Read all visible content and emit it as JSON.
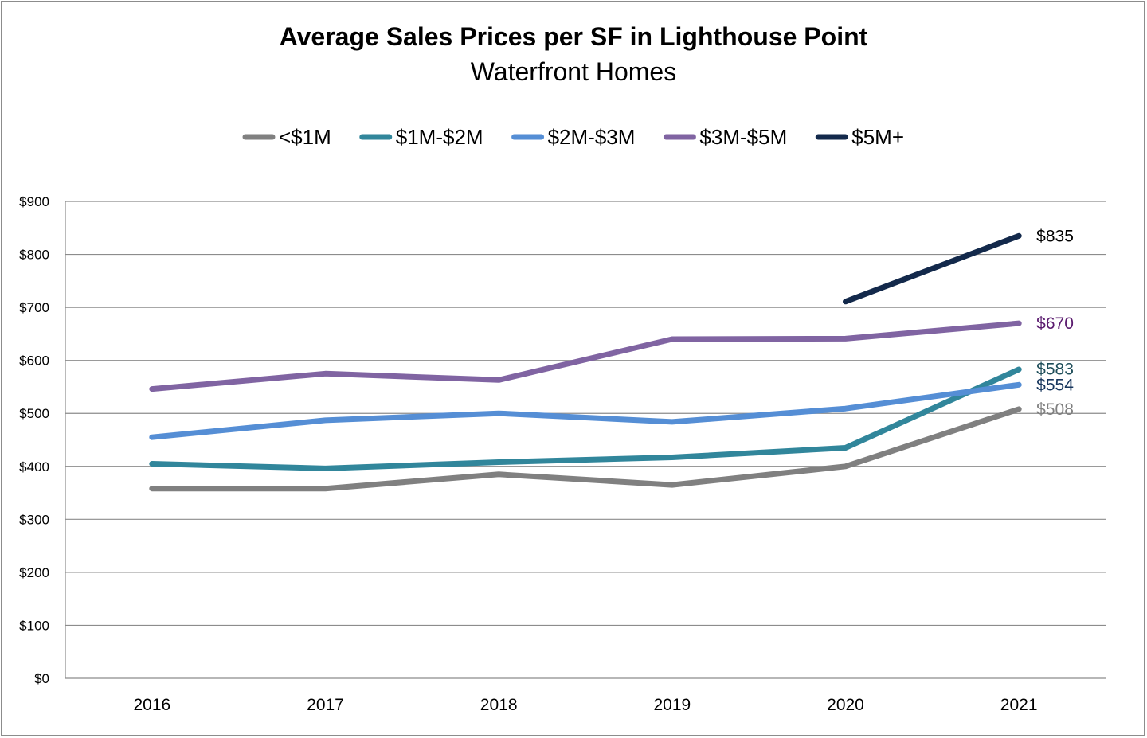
{
  "chart_data": {
    "type": "line",
    "title": "Average Sales Prices per SF in Lighthouse Point",
    "subtitle": "Waterfront Homes",
    "xlabel": "",
    "ylabel": "",
    "categories": [
      "2016",
      "2017",
      "2018",
      "2019",
      "2020",
      "2021"
    ],
    "ylim": [
      0,
      900
    ],
    "y_ticks": [
      0,
      100,
      200,
      300,
      400,
      500,
      600,
      700,
      800,
      900
    ],
    "y_tick_labels": [
      "$0",
      "$100",
      "$200",
      "$300",
      "$400",
      "$500",
      "$600",
      "$700",
      "$800",
      "$900"
    ],
    "grid": true,
    "legend_position": "top",
    "series": [
      {
        "name": "<$1M",
        "color": "#808080",
        "label_color": "#808080",
        "values": [
          358,
          358,
          385,
          365,
          400,
          508
        ],
        "end_label": "$508"
      },
      {
        "name": "$1M-$2M",
        "color": "#31869b",
        "label_color": "#1f4e5a",
        "values": [
          405,
          396,
          408,
          417,
          435,
          583
        ],
        "end_label": "$583"
      },
      {
        "name": "$2M-$3M",
        "color": "#558ed5",
        "label_color": "#17365d",
        "values": [
          455,
          487,
          500,
          484,
          509,
          554
        ],
        "end_label": "$554"
      },
      {
        "name": "$3M-$5M",
        "color": "#8064a2",
        "label_color": "#5a1a6e",
        "values": [
          546,
          575,
          563,
          640,
          641,
          670
        ],
        "end_label": "$670"
      },
      {
        "name": "$5M+",
        "color": "#13294b",
        "label_color": "#000000",
        "values": [
          null,
          null,
          null,
          null,
          711,
          835
        ],
        "end_label": "$835"
      }
    ]
  }
}
